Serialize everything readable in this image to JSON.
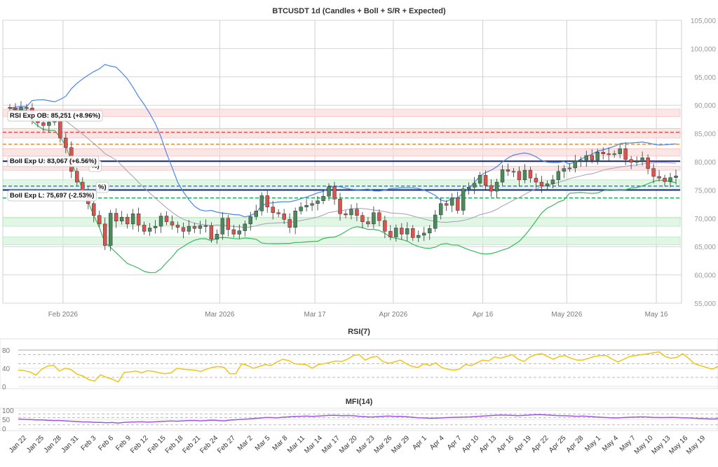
{
  "chart_data": {
    "type": "candlestick",
    "title": "BTCUSDT 1d (Candles + Boll + S/R + Expected)",
    "colors": {
      "up": "#4a8a5c",
      "down": "#d9534f",
      "boll_upper": "#4a86e8",
      "boll_lower": "#3cb85c",
      "boll_mid": "#a89ab8",
      "rsi": "#f0c419",
      "mfi": "#9b59e0",
      "resistance_zone": "#fbdcdc",
      "support_zone": "#d8f3dc",
      "expected_line": "#1a237e"
    },
    "price_axis": {
      "ylim": [
        55000,
        105000
      ],
      "ticks": [
        "55,000",
        "60,000",
        "65,000",
        "70,000",
        "75,000",
        "80,000",
        "85,000",
        "90,000",
        "95,000",
        "100,000",
        "105,000"
      ],
      "tick_values": [
        55000,
        60000,
        65000,
        70000,
        75000,
        80000,
        85000,
        90000,
        95000,
        100000,
        105000
      ]
    },
    "date_axis_top": [
      "Feb 2026",
      "Mar 2026",
      "Mar 17",
      "Apr 2026",
      "Apr 16",
      "May 2026",
      "May 16"
    ],
    "date_axis_bottom": [
      "Jan 22",
      "Jan 25",
      "Jan 28",
      "Jan 31",
      "Feb 3",
      "Feb 6",
      "Feb 9",
      "Feb 12",
      "Feb 15",
      "Feb 18",
      "Feb 21",
      "Feb 24",
      "Feb 27",
      "Mar 2",
      "Mar 5",
      "Mar 8",
      "Mar 11",
      "Mar 14",
      "Mar 17",
      "Mar 20",
      "Mar 23",
      "Mar 26",
      "Mar 29",
      "Apr 1",
      "Apr 4",
      "Apr 7",
      "Apr 10",
      "Apr 13",
      "Apr 16",
      "Apr 19",
      "Apr 22",
      "Apr 25",
      "Apr 28",
      "May 1",
      "May 4",
      "May 7",
      "May 10",
      "May 13",
      "May 16",
      "May 19"
    ],
    "date_axis_top_index": [
      10,
      38,
      55,
      69,
      85,
      100,
      116
    ],
    "closes": [
      89500,
      89200,
      89600,
      89500,
      87200,
      86900,
      86400,
      87000,
      87200,
      84200,
      82500,
      78300,
      76400,
      74600,
      72600,
      70500,
      69000,
      65200,
      70900,
      69500,
      70200,
      69000,
      70800,
      68800,
      67700,
      68300,
      68600,
      70400,
      69400,
      68800,
      68400,
      67700,
      68600,
      68200,
      68700,
      68700,
      66300,
      67200,
      70000,
      68000,
      67200,
      67800,
      69000,
      70300,
      71300,
      74000,
      72000,
      71000,
      70800,
      69800,
      68400,
      71300,
      72000,
      72300,
      72600,
      73100,
      73900,
      75600,
      73400,
      70800,
      70600,
      71600,
      70500,
      69400,
      69000,
      71000,
      69600,
      67700,
      66700,
      68300,
      67200,
      68200,
      66600,
      67000,
      67400,
      68200,
      70600,
      72600,
      72300,
      73600,
      71400,
      75200,
      75500,
      76200,
      77600,
      75800,
      74800,
      76400,
      78600,
      78300,
      78300,
      76800,
      78500,
      77100,
      76400,
      75700,
      76100,
      76800,
      78300,
      78800,
      78900,
      80100,
      80300,
      81100,
      80300,
      81700,
      81400,
      81300,
      81400,
      82300,
      80400,
      79900,
      80100,
      80700,
      78800,
      77400,
      77100,
      76500,
      77200,
      77500
    ],
    "opens": [
      89600,
      89500,
      89200,
      89600,
      89500,
      87200,
      86900,
      86400,
      87000,
      87200,
      84200,
      82500,
      78300,
      76400,
      74600,
      72600,
      70500,
      69000,
      65200,
      70900,
      69500,
      70200,
      69000,
      70800,
      68800,
      67700,
      68300,
      68600,
      70400,
      69400,
      68800,
      68400,
      67700,
      68600,
      68200,
      68700,
      68700,
      66300,
      67200,
      70000,
      68000,
      67200,
      67800,
      69000,
      70300,
      71300,
      74000,
      72000,
      71000,
      70800,
      69800,
      68400,
      71300,
      72000,
      72300,
      72600,
      73100,
      73900,
      75600,
      73400,
      70800,
      70600,
      71600,
      70500,
      69400,
      69000,
      71000,
      69600,
      67700,
      66700,
      68300,
      67200,
      68200,
      66600,
      67000,
      67400,
      68200,
      70600,
      72600,
      72300,
      73600,
      71400,
      75200,
      75500,
      76200,
      77600,
      75800,
      74800,
      76400,
      78600,
      78300,
      78300,
      76800,
      78500,
      77100,
      76400,
      75700,
      76100,
      76800,
      78300,
      78800,
      78900,
      80100,
      80300,
      81100,
      80300,
      81700,
      81400,
      81300,
      81400,
      82300,
      80400,
      79900,
      80100,
      80700,
      78800,
      77400,
      77100,
      76500,
      77200
    ],
    "zones": {
      "resistance": [
        [
          88000,
          89300
        ],
        [
          84200,
          85900
        ],
        [
          81000,
          82300
        ],
        [
          78500,
          79200
        ]
      ],
      "support": [
        [
          75000,
          76800
        ],
        [
          68600,
          70200
        ],
        [
          65300,
          66700
        ]
      ]
    },
    "levels": {
      "red_dashed": 85200,
      "orange_dashed": 83100,
      "boll_exp_u_line": 80100,
      "blue_dashed": 75700,
      "boll_exp_l_line": 75000,
      "green_dashed": 73600
    },
    "annotations": {
      "rsi_exp_ob": "RSI Exp OB: 85,251 (+8.96%)",
      "boll_exp_u": "Boll Exp U: 83,067 (+6.56%)",
      "boll_exp_l": "Boll Exp L: 75,697 (-2.53%)",
      "overlap_1": "%)",
      "overlap_2": "%)"
    },
    "rsi": {
      "title": "RSI(7)",
      "ylim": [
        0,
        100
      ],
      "ticks": [
        "0",
        "40",
        "80"
      ],
      "tick_values": [
        0,
        40,
        80
      ],
      "ref_lines": [
        20,
        50,
        70,
        80
      ],
      "values": [
        36,
        35,
        32,
        25,
        38,
        45,
        47,
        34,
        40,
        37,
        27,
        23,
        15,
        12,
        26,
        20,
        16,
        10,
        31,
        32,
        34,
        30,
        35,
        33,
        30,
        28,
        30,
        40,
        38,
        37,
        36,
        33,
        38,
        42,
        44,
        42,
        28,
        28,
        50,
        46,
        40,
        44,
        48,
        46,
        54,
        60,
        57,
        50,
        49,
        48,
        40,
        48,
        50,
        53,
        56,
        55,
        60,
        68,
        70,
        58,
        64,
        66,
        55,
        51,
        54,
        58,
        50,
        44,
        42,
        50,
        46,
        52,
        42,
        38,
        36,
        38,
        48,
        46,
        52,
        58,
        56,
        65,
        62,
        66,
        70,
        60,
        55,
        65,
        70,
        72,
        66,
        60,
        66,
        68,
        62,
        58,
        58,
        62,
        66,
        68,
        68,
        60,
        54,
        60,
        66,
        68,
        70,
        72,
        74,
        76,
        66,
        62,
        64,
        72,
        62,
        50,
        46,
        42,
        38,
        44
      ]
    },
    "mfi": {
      "title": "MFI(14)",
      "ylim": [
        0,
        100
      ],
      "ticks": [
        "0",
        "50",
        "100"
      ],
      "tick_values": [
        0,
        50,
        100
      ],
      "ref_lines": [
        20,
        60,
        80
      ],
      "values": [
        52,
        50,
        49,
        47,
        47,
        45,
        44,
        44,
        42,
        40,
        38,
        36,
        36,
        34,
        34,
        32,
        33,
        30,
        34,
        35,
        36,
        37,
        35,
        36,
        38,
        40,
        41,
        40,
        42,
        44,
        44,
        42,
        44,
        46,
        44,
        42,
        46,
        48,
        50,
        52,
        55,
        57,
        60,
        60,
        58,
        62,
        64,
        66,
        67,
        68,
        66,
        68,
        70,
        72,
        72,
        70,
        71,
        70,
        67,
        65,
        63,
        65,
        67,
        68,
        66,
        67,
        65,
        62,
        59,
        58,
        56,
        57,
        58,
        60,
        61,
        62,
        63,
        64,
        66,
        68,
        70,
        72,
        74,
        73,
        72,
        70,
        72,
        74,
        76,
        76,
        74,
        72,
        70,
        70,
        69,
        67,
        68,
        66,
        64,
        62,
        60,
        58,
        58,
        60,
        62,
        63,
        64,
        63,
        61,
        60,
        60,
        61,
        60,
        59,
        58,
        56,
        55,
        54,
        52,
        54
      ]
    }
  }
}
